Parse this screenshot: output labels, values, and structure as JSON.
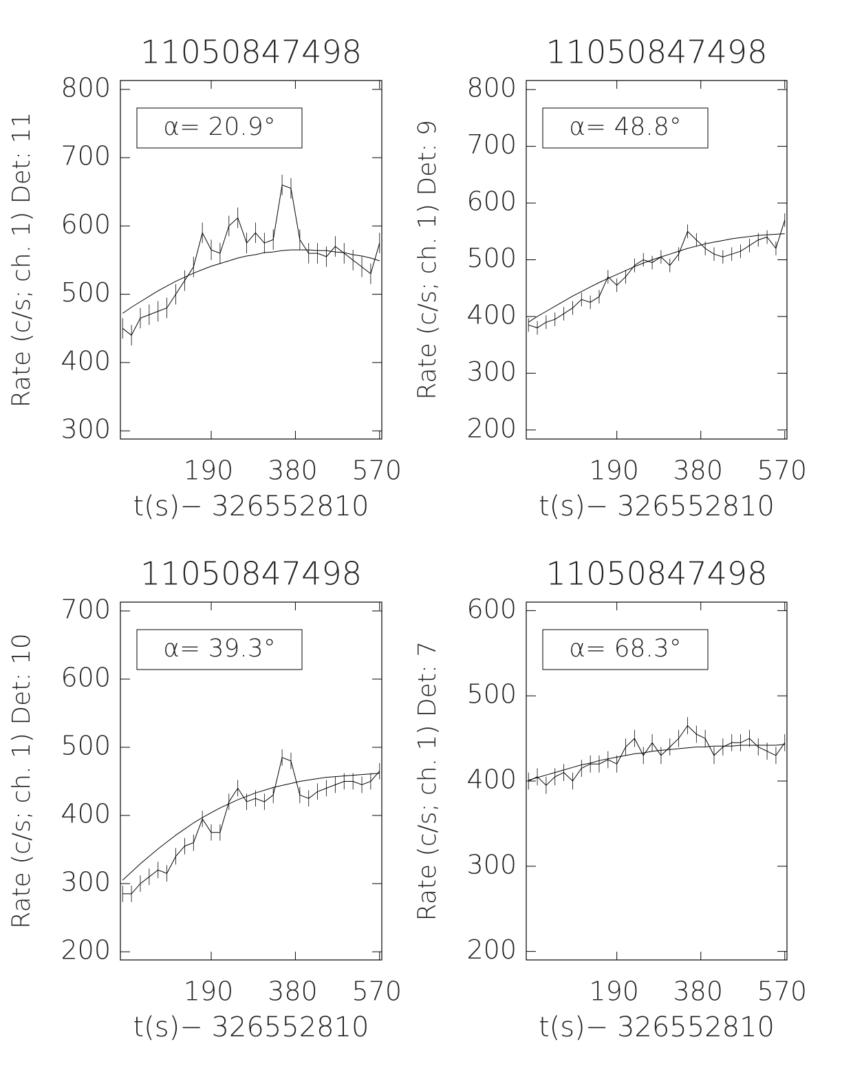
{
  "chart_data": [
    {
      "type": "line",
      "title": "11050847498",
      "ylabel": "Rate (c/s; ch. 1) Det: 11",
      "xlabel": "t(s)− 326552810",
      "annotation": "α= 20.9°",
      "xlim": [
        -15,
        575
      ],
      "xticks": [
        190,
        380,
        570
      ],
      "ylim": [
        288,
        813
      ],
      "yticks": [
        300,
        400,
        500,
        600,
        700,
        800
      ],
      "x": [
        -10,
        10,
        30,
        50,
        70,
        90,
        110,
        130,
        150,
        170,
        190,
        210,
        230,
        250,
        270,
        290,
        310,
        330,
        350,
        370,
        390,
        410,
        430,
        450,
        470,
        490,
        510,
        530,
        550,
        570
      ],
      "series": [
        {
          "color": "#000000",
          "error": 15,
          "values": [
            450,
            440,
            465,
            470,
            475,
            480,
            500,
            520,
            540,
            590,
            565,
            560,
            600,
            612,
            575,
            590,
            575,
            580,
            660,
            655,
            580,
            560,
            560,
            555,
            570,
            560,
            550,
            540,
            530,
            575
          ]
        },
        {
          "color": "#000000",
          "values": [
            472,
            481,
            489,
            497,
            505,
            512,
            519,
            525,
            531,
            536,
            541,
            545,
            549,
            553,
            556,
            558,
            561,
            562,
            564,
            565,
            565,
            565,
            564,
            564,
            562,
            561,
            558,
            556,
            553,
            549
          ]
        }
      ]
    },
    {
      "type": "line",
      "title": "11050847498",
      "ylabel": "Rate (c/s; ch. 1) Det: 9",
      "xlabel": "t(s)− 326552810",
      "annotation": "α= 48.8°",
      "xlim": [
        -15,
        575
      ],
      "xticks": [
        190,
        380,
        570
      ],
      "ylim": [
        184,
        816
      ],
      "yticks": [
        200,
        300,
        400,
        500,
        600,
        700,
        800
      ],
      "x": [
        -10,
        10,
        30,
        50,
        70,
        90,
        110,
        130,
        150,
        170,
        190,
        210,
        230,
        250,
        270,
        290,
        310,
        330,
        350,
        370,
        390,
        410,
        430,
        450,
        470,
        490,
        510,
        530,
        550,
        570
      ],
      "series": [
        {
          "color": "#000000",
          "error": 12,
          "values": [
            385,
            380,
            390,
            395,
            405,
            415,
            430,
            425,
            435,
            470,
            455,
            470,
            490,
            500,
            495,
            505,
            490,
            510,
            550,
            535,
            520,
            510,
            505,
            510,
            515,
            525,
            535,
            540,
            520,
            570
          ]
        },
        {
          "color": "#000000",
          "values": [
            390,
            400,
            409,
            418,
            427,
            436,
            444,
            452,
            460,
            467,
            474,
            481,
            488,
            494,
            500,
            505,
            510,
            515,
            520,
            524,
            528,
            531,
            534,
            537,
            539,
            541,
            543,
            544,
            545,
            546
          ]
        }
      ]
    },
    {
      "type": "line",
      "title": "11050847498",
      "ylabel": "Rate (c/s; ch. 1) Det: 10",
      "xlabel": "t(s)− 326552810",
      "annotation": "α= 39.3°",
      "xlim": [
        -15,
        575
      ],
      "xticks": [
        190,
        380,
        570
      ],
      "ylim": [
        188,
        713
      ],
      "yticks": [
        200,
        300,
        400,
        500,
        600,
        700
      ],
      "x": [
        -10,
        10,
        30,
        50,
        70,
        90,
        110,
        130,
        150,
        170,
        190,
        210,
        230,
        250,
        270,
        290,
        310,
        330,
        350,
        370,
        390,
        410,
        430,
        450,
        470,
        490,
        510,
        530,
        550,
        570
      ],
      "series": [
        {
          "color": "#000000",
          "error": 12,
          "values": [
            285,
            285,
            300,
            310,
            320,
            315,
            340,
            355,
            360,
            395,
            375,
            375,
            420,
            440,
            420,
            425,
            420,
            430,
            485,
            480,
            430,
            425,
            435,
            440,
            445,
            450,
            450,
            445,
            450,
            465
          ]
        },
        {
          "color": "#000000",
          "values": [
            305,
            317,
            329,
            340,
            351,
            361,
            371,
            380,
            389,
            397,
            404,
            411,
            417,
            423,
            428,
            433,
            437,
            441,
            444,
            447,
            450,
            452,
            454,
            456,
            457,
            458,
            459,
            460,
            461,
            462
          ]
        }
      ]
    },
    {
      "type": "line",
      "title": "11050847498",
      "ylabel": "Rate (c/s; ch. 1) Det: 7",
      "xlabel": "t(s)− 326552810",
      "annotation": "α= 68.3°",
      "xlim": [
        -15,
        575
      ],
      "xticks": [
        190,
        380,
        570
      ],
      "ylim": [
        190,
        610
      ],
      "yticks": [
        200,
        300,
        400,
        500,
        600
      ],
      "x": [
        -10,
        10,
        30,
        50,
        70,
        90,
        110,
        130,
        150,
        170,
        190,
        210,
        230,
        250,
        270,
        290,
        310,
        330,
        350,
        370,
        390,
        410,
        430,
        450,
        470,
        490,
        510,
        530,
        550,
        570
      ],
      "series": [
        {
          "color": "#000000",
          "error": 10,
          "values": [
            400,
            405,
            395,
            405,
            410,
            400,
            415,
            420,
            420,
            425,
            420,
            440,
            450,
            430,
            445,
            430,
            440,
            450,
            465,
            455,
            450,
            430,
            440,
            445,
            445,
            450,
            440,
            435,
            430,
            445
          ]
        },
        {
          "color": "#000000",
          "values": [
            401,
            404,
            407,
            410,
            413,
            416,
            419,
            421,
            424,
            426,
            428,
            430,
            432,
            433,
            435,
            436,
            437,
            438,
            439,
            440,
            440,
            441,
            441,
            441,
            442,
            442,
            442,
            442,
            442,
            443
          ]
        }
      ]
    }
  ]
}
